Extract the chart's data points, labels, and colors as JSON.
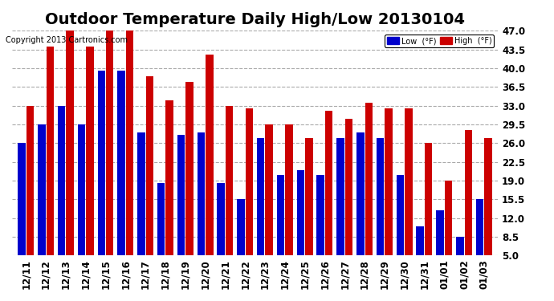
{
  "title": "Outdoor Temperature Daily High/Low 20130104",
  "copyright": "Copyright 2013 Cartronics.com",
  "categories": [
    "12/11",
    "12/12",
    "12/13",
    "12/14",
    "12/15",
    "12/16",
    "12/17",
    "12/18",
    "12/19",
    "12/20",
    "12/21",
    "12/22",
    "12/23",
    "12/24",
    "12/25",
    "12/26",
    "12/27",
    "12/28",
    "12/29",
    "12/30",
    "12/31",
    "01/01",
    "01/02",
    "01/03"
  ],
  "low_values": [
    26,
    29.5,
    33,
    29.5,
    39.5,
    39.5,
    28,
    18.5,
    27.5,
    28,
    18.5,
    15.5,
    27,
    20,
    21,
    20,
    27,
    28,
    27,
    20,
    10.5,
    13.5,
    8.5,
    15.5
  ],
  "high_values": [
    33,
    44,
    47,
    44,
    47,
    47,
    38.5,
    34,
    37.5,
    42.5,
    33,
    32.5,
    29.5,
    29.5,
    27,
    32,
    30.5,
    33.5,
    32.5,
    32.5,
    26,
    19,
    28.5,
    27
  ],
  "low_color": "#0000cc",
  "high_color": "#cc0000",
  "bg_color": "#ffffff",
  "grid_color": "#aaaaaa",
  "ymin": 5.0,
  "ymax": 47.0,
  "yticks": [
    5.0,
    8.5,
    12.0,
    15.5,
    19.0,
    22.5,
    26.0,
    29.5,
    33.0,
    36.5,
    40.0,
    43.5,
    47.0
  ],
  "title_fontsize": 14,
  "tick_fontsize": 8.5,
  "legend_low_label": "Low  (°F)",
  "legend_high_label": "High  (°F)"
}
